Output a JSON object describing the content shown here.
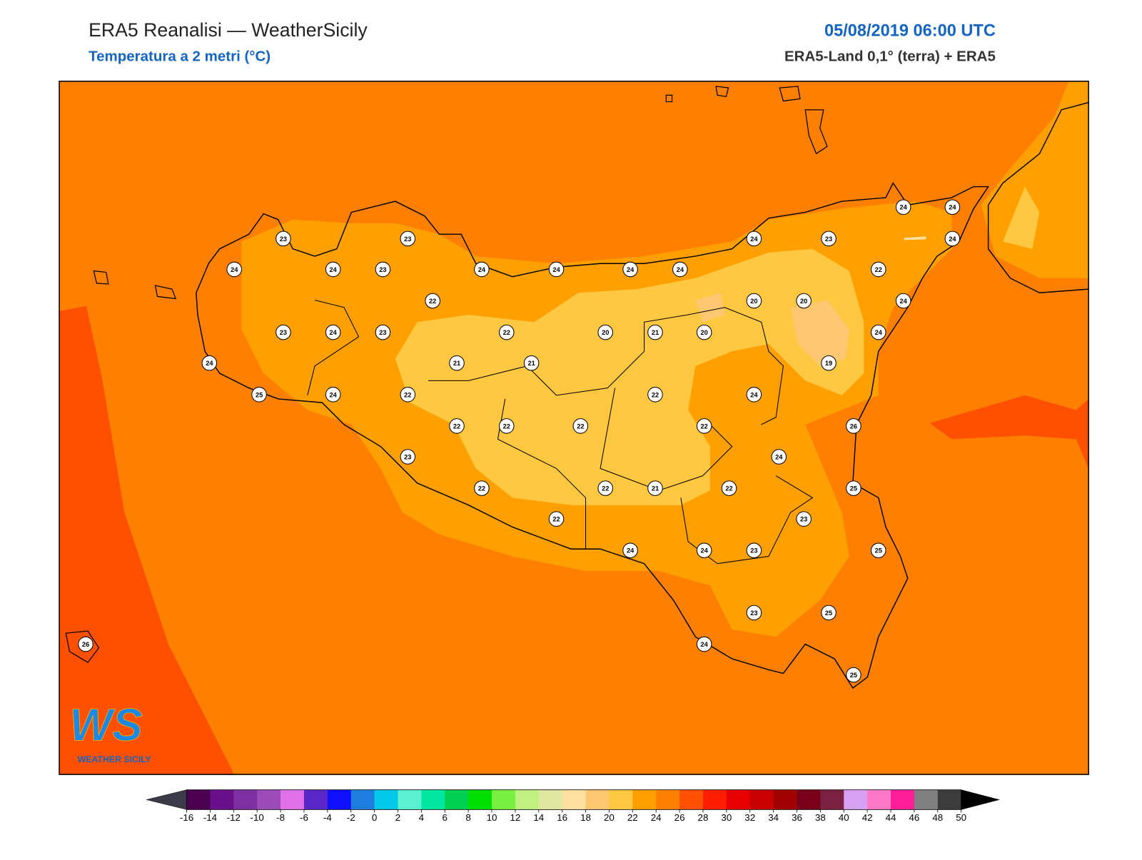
{
  "header": {
    "title": "ERA5 Reanalisi — WeatherSicily",
    "subtitle": "Temperatura a 2 metri (°C)",
    "datetime": "05/08/2019 06:00 UTC",
    "source": "ERA5-Land 0,1° (terra) + ERA5"
  },
  "stations": [
    23,
    23,
    24,
    23,
    24,
    24,
    24,
    24,
    24,
    23,
    24,
    24,
    24,
    24,
    22,
    22,
    20,
    20,
    24,
    23,
    24,
    23,
    22,
    20,
    21,
    20,
    24,
    24,
    21,
    21,
    19,
    25,
    24,
    22,
    22,
    24,
    22,
    22,
    22,
    22,
    26,
    23,
    24,
    22,
    22,
    21,
    22,
    25,
    23,
    22,
    24,
    24,
    23,
    25,
    23,
    25,
    26,
    24,
    25
  ],
  "colorbar": {
    "ticks": [
      -16,
      -14,
      -12,
      -10,
      -8,
      -6,
      -4,
      -2,
      0,
      2,
      4,
      6,
      8,
      10,
      12,
      14,
      16,
      18,
      20,
      22,
      24,
      26,
      28,
      30,
      32,
      34,
      36,
      38,
      40,
      42,
      44,
      46,
      48,
      50
    ],
    "colors": [
      "#4b0050",
      "#6a0f8a",
      "#7e2fa0",
      "#9b4cb8",
      "#e070e8",
      "#5a28c8",
      "#1010ff",
      "#1e7ee0",
      "#00c8e6",
      "#5af0d0",
      "#00e8a0",
      "#00d050",
      "#00e000",
      "#78f040",
      "#c0f080",
      "#e0e8a0",
      "#ffe0a0",
      "#ffc870",
      "#ffc840",
      "#ffa000",
      "#ff8000",
      "#ff5000",
      "#ff1e00",
      "#e60000",
      "#c80000",
      "#a00000",
      "#780018",
      "#7a2040",
      "#d8a0f0",
      "#ff78c8",
      "#ff1e96",
      "#808080",
      "#3c3c3c"
    ],
    "under_color": "#3a3a48",
    "over_color": "#000000"
  },
  "logo": {
    "text": "WS",
    "caption": "WEATHER SICILY"
  }
}
